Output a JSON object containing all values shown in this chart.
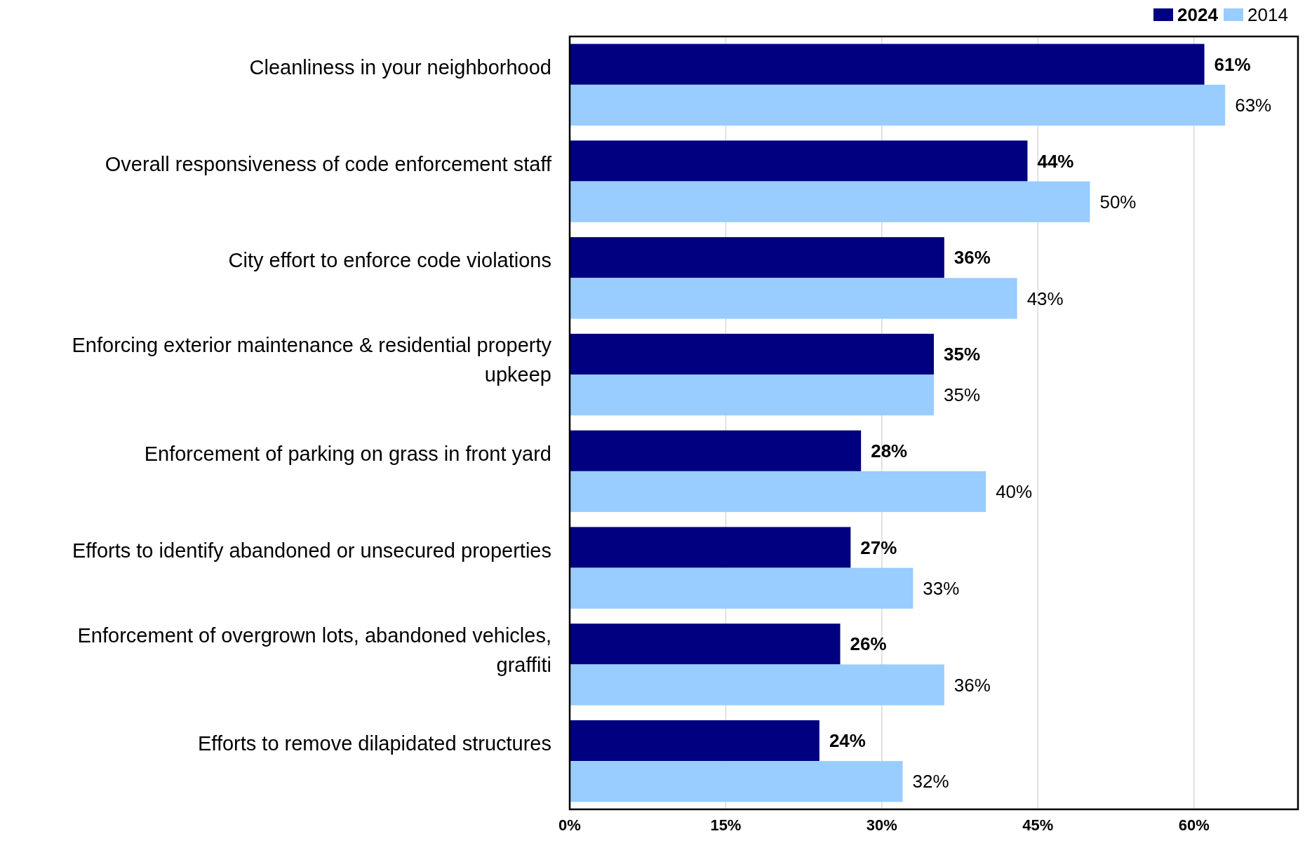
{
  "chart_data": {
    "type": "bar",
    "orientation": "horizontal",
    "categories": [
      "Cleanliness in your neighborhood",
      "Overall responsiveness of code enforcement staff",
      "City effort to enforce code violations",
      "Enforcing exterior maintenance & residential property upkeep",
      "Enforcement of parking on grass in front yard",
      "Efforts to identify abandoned or unsecured properties",
      "Enforcement of overgrown lots, abandoned vehicles, graffiti",
      "Efforts to remove dilapidated structures"
    ],
    "series": [
      {
        "name": "2024",
        "color": "#000080",
        "values": [
          61,
          44,
          36,
          35,
          28,
          27,
          26,
          24
        ],
        "value_labels": [
          "61%",
          "44%",
          "36%",
          "35%",
          "28%",
          "27%",
          "26%",
          "24%"
        ]
      },
      {
        "name": "2014",
        "color": "#99ccff",
        "values": [
          63,
          50,
          43,
          35,
          40,
          33,
          36,
          32
        ],
        "value_labels": [
          "63%",
          "50%",
          "43%",
          "35%",
          "40%",
          "33%",
          "36%",
          "32%"
        ]
      }
    ],
    "xlim": [
      0,
      70
    ],
    "xticks": [
      {
        "value": 0,
        "label": "0%"
      },
      {
        "value": 15,
        "label": "15%"
      },
      {
        "value": 30,
        "label": "30%"
      },
      {
        "value": 45,
        "label": "45%"
      },
      {
        "value": 60,
        "label": "60%"
      }
    ],
    "grid": "x",
    "legend": "top right"
  }
}
